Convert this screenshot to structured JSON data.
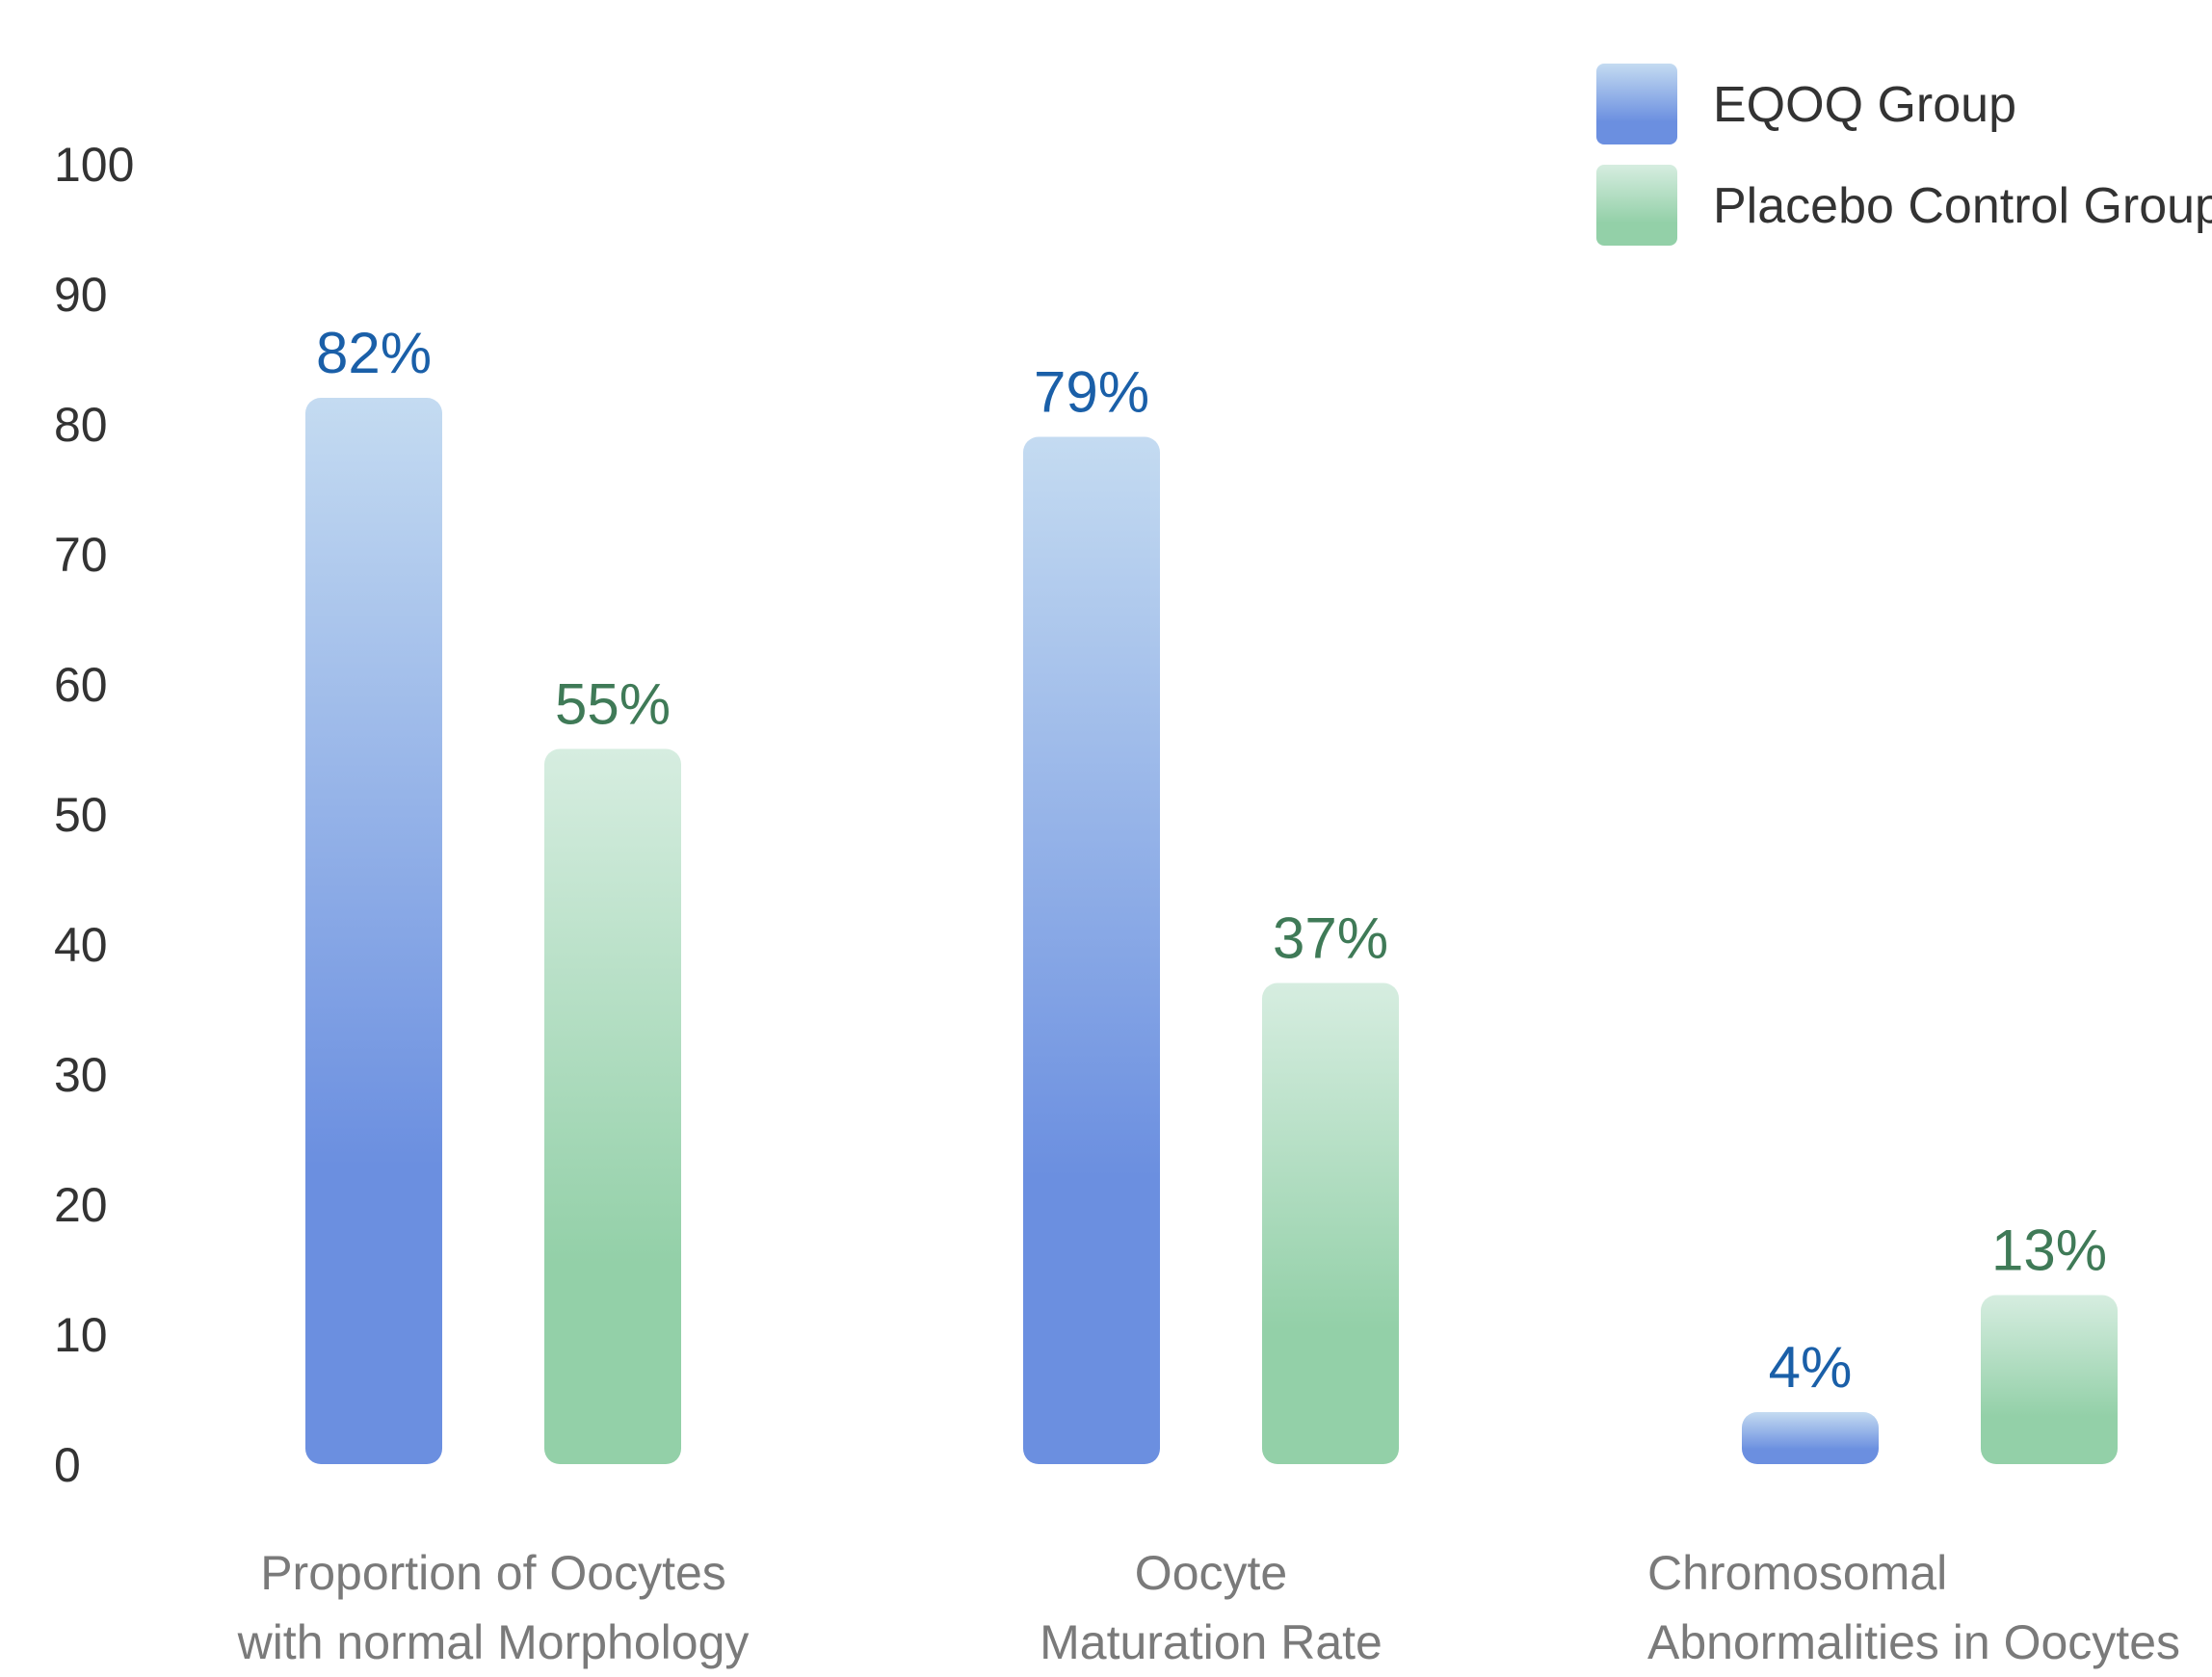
{
  "chart_data": {
    "type": "bar",
    "categories": [
      [
        "Proportion of Oocytes",
        "with normal Morphology"
      ],
      [
        "Oocyte",
        "Maturation Rate"
      ],
      [
        "Chromosomal",
        "Abnormalities in Oocytes"
      ]
    ],
    "series": [
      {
        "name": "EQOQ Group",
        "values": [
          82,
          79,
          4
        ],
        "labels": [
          "82%",
          "79%",
          "4%"
        ],
        "color_top": "#c4dbf1",
        "color_bottom": "#6b8fe0",
        "label_color": "#1a5fa8"
      },
      {
        "name": "Placebo Control Group",
        "values": [
          55,
          37,
          13
        ],
        "labels": [
          "55%",
          "37%",
          "13%"
        ],
        "color_top": "#d6ede0",
        "color_bottom": "#93d0a8",
        "label_color": "#3f7a57"
      }
    ],
    "yticks": [
      "0",
      "10",
      "20",
      "30",
      "40",
      "50",
      "60",
      "70",
      "80",
      "90",
      "100"
    ],
    "ylim": [
      0,
      100
    ],
    "grid": false,
    "legend": "top-right",
    "title": "",
    "xlabel": "",
    "ylabel": ""
  }
}
